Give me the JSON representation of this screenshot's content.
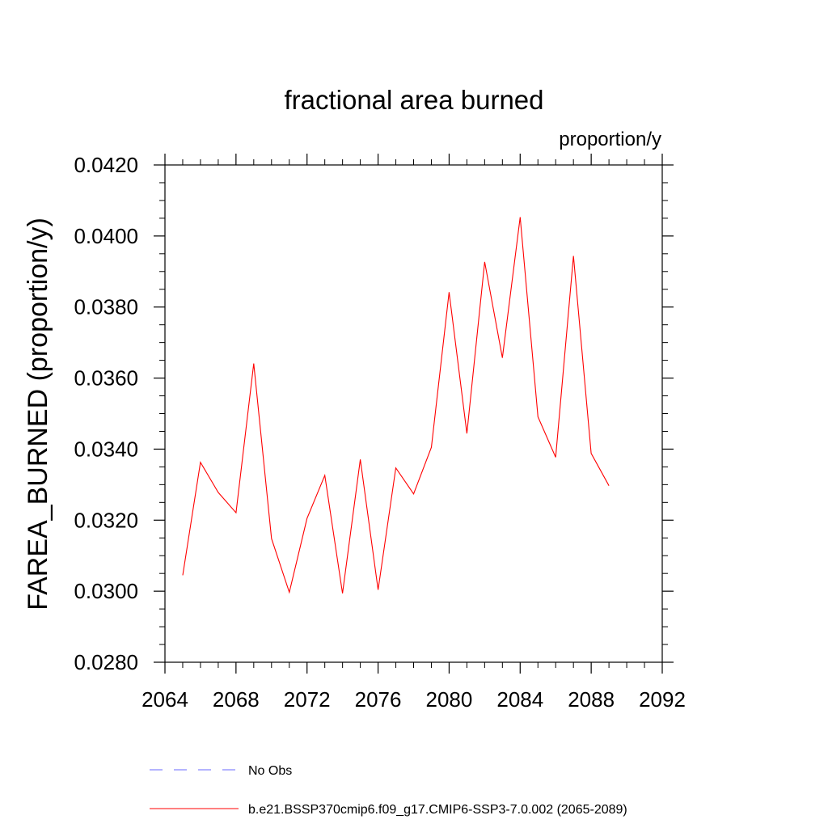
{
  "chart_data": {
    "type": "line",
    "title": "fractional area burned",
    "units_label": "proportion/y",
    "ylabel": "FAREA_BURNED  (proportion/y)",
    "xlabel": "",
    "xlim": [
      2064,
      2092
    ],
    "ylim": [
      0.028,
      0.042
    ],
    "x_ticks": [
      2064,
      2068,
      2072,
      2076,
      2080,
      2084,
      2088,
      2092
    ],
    "x_tick_labels": [
      "2064",
      "2068",
      "2072",
      "2076",
      "2080",
      "2084",
      "2088",
      "2092"
    ],
    "y_ticks": [
      0.028,
      0.03,
      0.032,
      0.034,
      0.036,
      0.038,
      0.04,
      0.042
    ],
    "y_tick_labels": [
      "0.0280",
      "0.0300",
      "0.0320",
      "0.0340",
      "0.0360",
      "0.0380",
      "0.0400",
      "0.0420"
    ],
    "grid": false,
    "legend_placement": "bottom",
    "legend": [
      {
        "name": "No Obs",
        "color": "#6a6aff",
        "style": "dashed"
      },
      {
        "name": "b.e21.BSSP370cmip6.f09_g17.CMIP6-SSP3-7.0.002 (2065-2089)",
        "color": "#ff0000",
        "style": "solid"
      }
    ],
    "series": [
      {
        "name": "b.e21.BSSP370cmip6.f09_g17.CMIP6-SSP3-7.0.002 (2065-2089)",
        "color": "#ff0000",
        "x": [
          2065,
          2066,
          2067,
          2068,
          2069,
          2070,
          2071,
          2072,
          2073,
          2074,
          2075,
          2076,
          2077,
          2078,
          2079,
          2080,
          2081,
          2082,
          2083,
          2084,
          2085,
          2086,
          2087,
          2088,
          2089
        ],
        "y": [
          0.03045,
          0.03363,
          0.03278,
          0.03221,
          0.03641,
          0.03148,
          0.02997,
          0.03205,
          0.03326,
          0.02994,
          0.03371,
          0.03004,
          0.03347,
          0.03274,
          0.03405,
          0.03842,
          0.03444,
          0.03927,
          0.03657,
          0.04053,
          0.03491,
          0.03377,
          0.03944,
          0.03388,
          0.03297
        ]
      }
    ]
  }
}
